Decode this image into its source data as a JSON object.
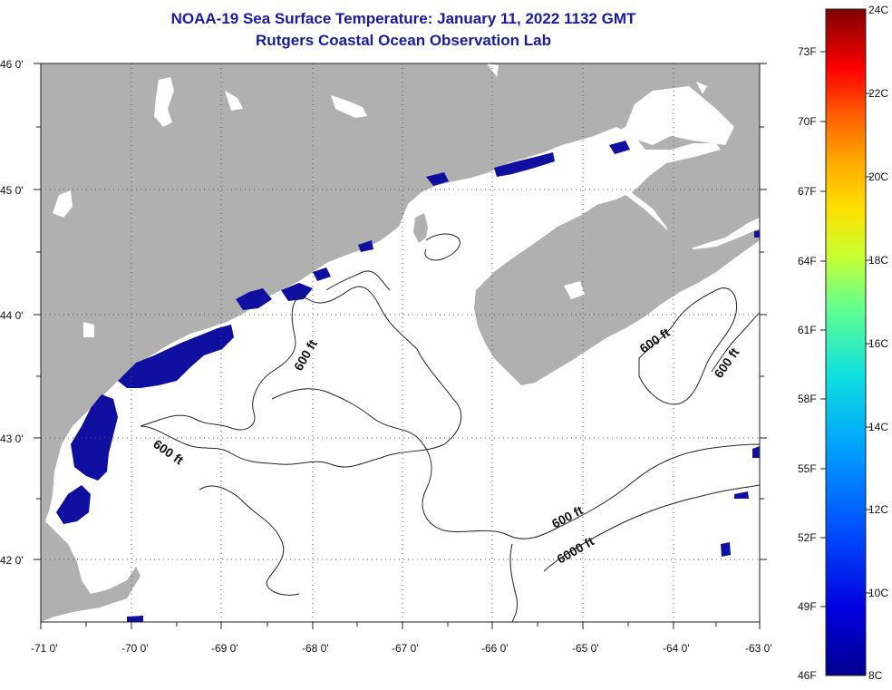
{
  "title": {
    "line1": "NOAA-19 Sea Surface Temperature:  January 11, 2022 1132 GMT",
    "line2": "Rutgers Coastal Ocean Observation Lab"
  },
  "map": {
    "lat_labels": [
      "46 0'",
      "45 0'",
      "44 0'",
      "43 0'",
      "42 0'"
    ],
    "lon_labels": [
      "-71 0'",
      "-70 0'",
      "-69 0'",
      "-68 0'",
      "-67 0'",
      "-66 0'",
      "-65 0'",
      "-64 0'",
      "-63 0'"
    ],
    "contour_labels": [
      "600 ft",
      "600 ft",
      "600 ft",
      "600 ft",
      "600 ft",
      "6000 ft"
    ]
  },
  "colorbar": {
    "fahrenheit": [
      "73F",
      "70F",
      "67F",
      "64F",
      "61F",
      "58F",
      "55F",
      "52F",
      "49F",
      "46F"
    ],
    "celsius": [
      "24C",
      "22C",
      "20C",
      "18C",
      "16C",
      "14C",
      "12C",
      "10C",
      "8C"
    ],
    "colors": [
      "#7f0000",
      "#c00000",
      "#ff0000",
      "#ff6000",
      "#ffaa00",
      "#ffe000",
      "#c8ff30",
      "#60ff90",
      "#10e0e0",
      "#00a0ff",
      "#0050ff",
      "#0000e0",
      "#00008f"
    ]
  },
  "colors": {
    "land": "#b0b0b0",
    "cold_water": "#1010a0",
    "title": "#1a1a9c"
  }
}
